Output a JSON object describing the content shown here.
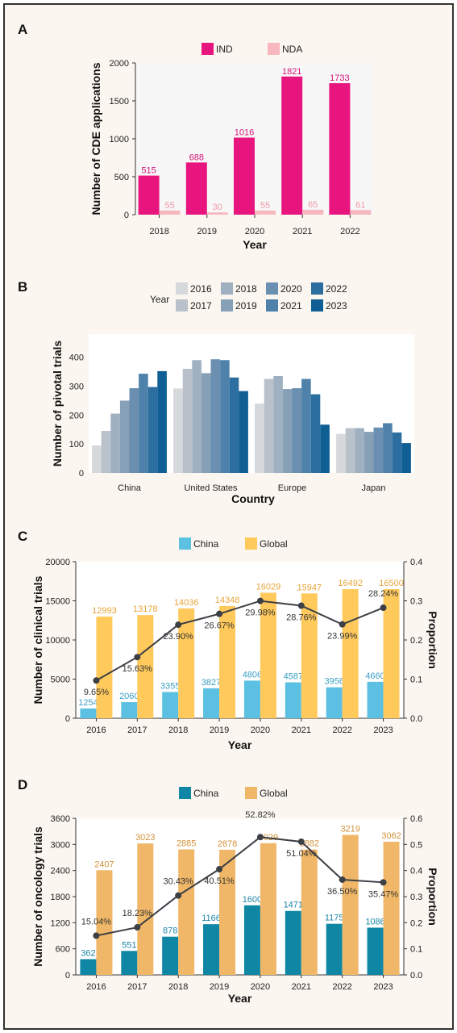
{
  "panels": {
    "A": {
      "letter": "A",
      "chart_data": {
        "type": "bar",
        "title": "",
        "xlabel": "Year",
        "ylabel": "Number of CDE applications",
        "categories": [
          "2018",
          "2019",
          "2020",
          "2021",
          "2022"
        ],
        "series": [
          {
            "name": "IND",
            "values": [
              515,
              688,
              1016,
              1821,
              1733
            ],
            "color": "#e8157f"
          },
          {
            "name": "NDA",
            "values": [
              55,
              30,
              55,
              65,
              61
            ],
            "color": "#f7b7bf"
          }
        ],
        "ylim": [
          0,
          2000
        ],
        "yticks": [
          0,
          500,
          1000,
          1500,
          2000
        ],
        "legend": "top"
      }
    },
    "B": {
      "letter": "B",
      "chart_data": {
        "type": "bar",
        "title": "",
        "xlabel": "Country",
        "ylabel": "Number of pivotal trials",
        "legend_title": "Year",
        "categories": [
          "China",
          "United States",
          "Europe",
          "Japan"
        ],
        "series": [
          {
            "name": "2016",
            "values": [
              95,
              292,
              240,
              135
            ],
            "color": "#d6d9dc"
          },
          {
            "name": "2017",
            "values": [
              145,
              360,
              325,
              155
            ],
            "color": "#b9c1cb"
          },
          {
            "name": "2018",
            "values": [
              205,
              390,
              335,
              155
            ],
            "color": "#9fb0c1"
          },
          {
            "name": "2019",
            "values": [
              250,
              345,
              290,
              142
            ],
            "color": "#86a0b8"
          },
          {
            "name": "2020",
            "values": [
              293,
              393,
              293,
              157
            ],
            "color": "#6b8fb0"
          },
          {
            "name": "2021",
            "values": [
              343,
              390,
              325,
              172
            ],
            "color": "#4f82aa"
          },
          {
            "name": "2022",
            "values": [
              297,
              330,
              272,
              140
            ],
            "color": "#2c6e9f"
          },
          {
            "name": "2023",
            "values": [
              352,
              283,
              167,
              103
            ],
            "color": "#0f5e94"
          }
        ],
        "ylim": [
          0,
          480
        ],
        "yticks": [
          0,
          100,
          200,
          300,
          400
        ],
        "legend": "top"
      }
    },
    "C": {
      "letter": "C",
      "chart_data": {
        "type": "bar",
        "title": "",
        "xlabel": "Year",
        "ylabel": "Number of clinical trials",
        "y2label": "Proportion",
        "categories": [
          "2016",
          "2017",
          "2018",
          "2019",
          "2020",
          "2021",
          "2022",
          "2023"
        ],
        "series": [
          {
            "name": "China",
            "values": [
              1254,
              2060,
              3355,
              3827,
              4806,
              4587,
              3956,
              4660
            ],
            "color": "#5bc0e1",
            "label_color": "#3a9fc4"
          },
          {
            "name": "Global",
            "values": [
              12993,
              13178,
              14036,
              14348,
              16029,
              15947,
              16492,
              16500
            ],
            "color": "#ffc95c",
            "label_color": "#e8a53a"
          }
        ],
        "line": {
          "axis": "right",
          "values": [
            0.0965,
            0.1563,
            0.239,
            0.2667,
            0.2998,
            0.2876,
            0.2399,
            0.2824
          ],
          "labels": [
            "9.65%",
            "15.63%",
            "23.90%",
            "26.67%",
            "29.98%",
            "28.76%",
            "23.99%",
            "28.24%"
          ],
          "color": "#3c3f45"
        },
        "ylim": [
          0,
          20000
        ],
        "yticks": [
          0,
          5000,
          10000,
          15000,
          20000
        ],
        "y2lim": [
          0,
          0.4
        ],
        "y2ticks": [
          "0.0",
          "0.1",
          "0.2",
          "0.3",
          "0.4"
        ],
        "legend": "top"
      }
    },
    "D": {
      "letter": "D",
      "chart_data": {
        "type": "bar",
        "title": "",
        "xlabel": "Year",
        "ylabel": "Number of oncology trials",
        "y2label": "Proportion",
        "categories": [
          "2016",
          "2017",
          "2018",
          "2019",
          "2020",
          "2021",
          "2022",
          "2023"
        ],
        "series": [
          {
            "name": "China",
            "values": [
              362,
              551,
              878,
              1166,
              1600,
              1471,
              1175,
              1086
            ],
            "color": "#0e86a4",
            "label_color": "#1a86a6"
          },
          {
            "name": "Global",
            "values": [
              2407,
              3023,
              2885,
              2878,
              3029,
              2882,
              3219,
              3062
            ],
            "color": "#f0b768",
            "label_color": "#d4923a"
          }
        ],
        "line": {
          "axis": "right",
          "values": [
            0.1504,
            0.1823,
            0.3043,
            0.4051,
            0.5282,
            0.5104,
            0.365,
            0.3547
          ],
          "labels": [
            "15.04%",
            "18.23%",
            "30.43%",
            "40.51%",
            "52.82%",
            "51.04%",
            "36.50%",
            "35.47%"
          ],
          "color": "#3c3f45"
        },
        "ylim": [
          0,
          3600
        ],
        "yticks": [
          0,
          600,
          1200,
          1800,
          2400,
          3000,
          3600
        ],
        "y2lim": [
          0,
          0.6
        ],
        "y2ticks": [
          "0.0",
          "0.1",
          "0.2",
          "0.3",
          "0.4",
          "0.5",
          "0.6"
        ],
        "legend": "top"
      }
    }
  }
}
